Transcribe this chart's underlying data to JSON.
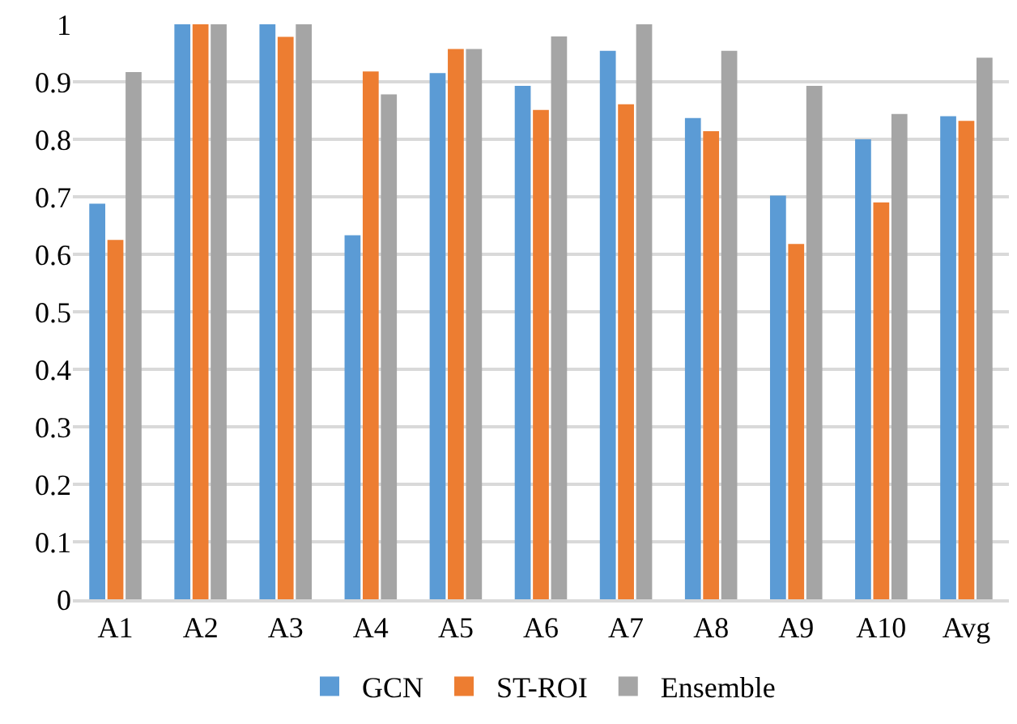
{
  "chart_data": {
    "type": "bar",
    "categories": [
      "A1",
      "A2",
      "A3",
      "A4",
      "A5",
      "A6",
      "A7",
      "A8",
      "A9",
      "A10",
      "Avg"
    ],
    "series": [
      {
        "name": "GCN",
        "color": "#5b9bd5",
        "values": [
          0.688,
          1,
          1,
          0.633,
          0.915,
          0.893,
          0.954,
          0.837,
          0.702,
          0.8,
          0.84
        ]
      },
      {
        "name": "ST-ROI",
        "color": "#ed7d31",
        "values": [
          0.625,
          1,
          0.978,
          0.918,
          0.957,
          0.851,
          0.861,
          0.814,
          0.618,
          0.69,
          0.832
        ]
      },
      {
        "name": "Ensemble",
        "color": "#a5a5a5",
        "values": [
          0.917,
          1,
          1,
          0.878,
          0.957,
          0.979,
          1,
          0.954,
          0.893,
          0.844,
          0.942
        ]
      }
    ],
    "ylim": [
      0,
      1
    ],
    "yticks": [
      0,
      {
        "value": 0.1,
        "label": "0.1"
      },
      {
        "value": 0.2,
        "label": "0.2"
      },
      {
        "value": 0.3,
        "label": "0.3"
      },
      {
        "value": 0.4,
        "label": "0.4"
      },
      {
        "value": 0.5,
        "label": "0.5"
      },
      {
        "value": 0.6,
        "label": "0.6"
      },
      {
        "value": 0.7,
        "label": "0.7"
      },
      {
        "value": 0.8,
        "label": "0.8"
      },
      {
        "value": 0.9,
        "label": "0.9"
      },
      1
    ],
    "grid": "y",
    "legend": "bottom"
  }
}
